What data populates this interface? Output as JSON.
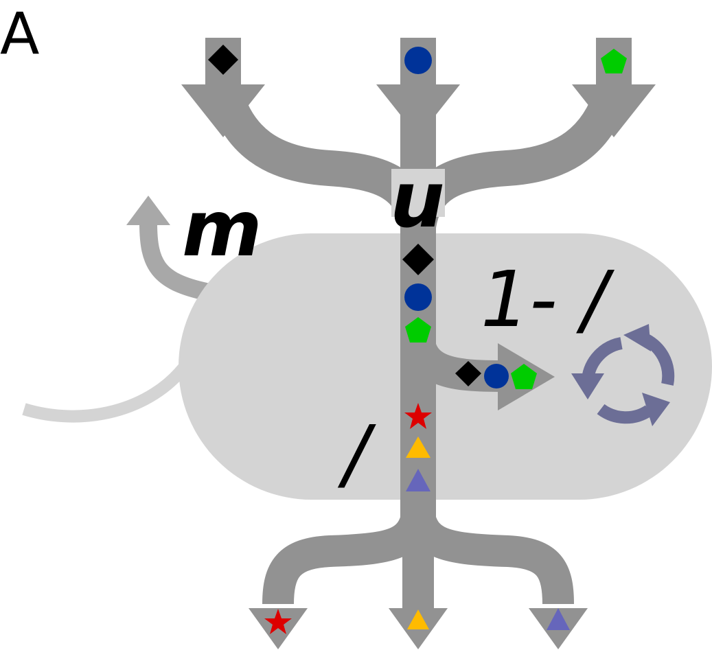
{
  "panel_label": "A",
  "labels": {
    "uptake": "u",
    "maintenance": "m",
    "lambda_synth": "1- /",
    "lambda_out": "/"
  },
  "colors": {
    "flux_gray": "#929292",
    "cell_gray": "#d4d4d4",
    "light_gray_arrow": "#a8a8a8",
    "cycle_icon": "#6c6e96",
    "diamond": "#000000",
    "circle": "#003399",
    "pentagon": "#00cc00",
    "star": "#dd0000",
    "triangle_yellow": "#ffbb00",
    "triangle_purple": "#6666bb"
  },
  "icons": {
    "inputs": [
      "diamond-icon",
      "circle-icon",
      "pentagon-icon"
    ],
    "outputs": [
      "star-icon",
      "triangle-yellow-icon",
      "triangle-purple-icon"
    ],
    "recycle": "recycle-icon"
  }
}
